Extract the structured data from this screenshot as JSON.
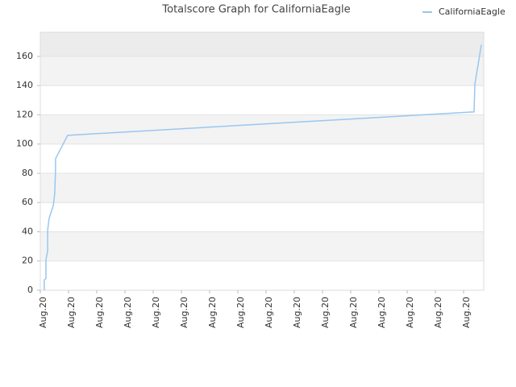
{
  "chart_data": {
    "type": "line",
    "title": "Totalscore Graph for CaliforniaEagle",
    "series": [
      {
        "name": "CaliforniaEagle",
        "color": "#99c7ef",
        "x": [
          0.14,
          0.14,
          0.2,
          0.2,
          0.26,
          0.26,
          0.31,
          0.46,
          0.51,
          0.54,
          0.54,
          0.97,
          15.37,
          15.4,
          15.63
        ],
        "values": [
          0,
          7,
          8,
          21,
          27,
          41,
          49,
          58,
          66,
          83,
          90,
          106,
          122,
          141,
          168
        ]
      }
    ],
    "xlim": [
      0,
      15.714
    ],
    "xticks": [
      {
        "value": 0,
        "label": "Aug.20"
      },
      {
        "value": 1,
        "label": "Aug.20"
      },
      {
        "value": 2,
        "label": "Aug.20"
      },
      {
        "value": 3,
        "label": "Aug.20"
      },
      {
        "value": 4,
        "label": "Aug.20"
      },
      {
        "value": 5,
        "label": "Aug.20"
      },
      {
        "value": 6,
        "label": "Aug.20"
      },
      {
        "value": 7,
        "label": "Aug.20"
      },
      {
        "value": 8,
        "label": "Aug.20"
      },
      {
        "value": 9,
        "label": "Aug.20"
      },
      {
        "value": 10,
        "label": "Aug.20"
      },
      {
        "value": 11,
        "label": "Aug.20"
      },
      {
        "value": 12,
        "label": "Aug.20"
      },
      {
        "value": 13,
        "label": "Aug.20"
      },
      {
        "value": 14,
        "label": "Aug.20"
      },
      {
        "value": 15,
        "label": "Aug.20"
      }
    ],
    "ylim": [
      0,
      176.5
    ],
    "yticks": [
      0,
      20,
      40,
      60,
      80,
      100,
      120,
      140,
      160
    ],
    "grid": true,
    "legend": "top-right"
  }
}
